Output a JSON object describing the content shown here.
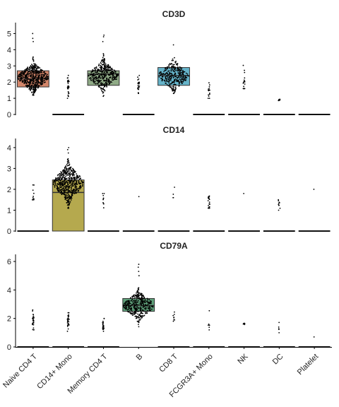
{
  "chart_data": {
    "type": "box-swarm",
    "categories": [
      "Naive CD4 T",
      "CD14+ Mono",
      "Memory CD4 T",
      "B",
      "CD8 T",
      "FCGR3A+ Mono",
      "NK",
      "DC",
      "Platelet"
    ],
    "category_labels": [
      "Naive CD4 T",
      "CD14+ Mono",
      "Memory CD4 T",
      "B",
      "CD8 T",
      "FCGR3A+ Mono",
      "NK",
      "DC",
      "Platelet"
    ],
    "panels": [
      {
        "title": "CD3D",
        "ylim": [
          0,
          5.5
        ],
        "yticks": [
          0,
          1,
          2,
          3,
          4,
          5
        ],
        "boxes": [
          {
            "category": "Naive CD4 T",
            "q1": 1.7,
            "median": 2.2,
            "q3": 2.7,
            "color": "#d4866a"
          },
          {
            "category": "CD14+ Mono",
            "q1": 0,
            "median": 0,
            "q3": 0,
            "color": "#b5a94e"
          },
          {
            "category": "Memory CD4 T",
            "q1": 1.8,
            "median": 2.5,
            "q3": 2.7,
            "color": "#8faa86"
          },
          {
            "category": "B",
            "q1": 0,
            "median": 0,
            "q3": 0,
            "color": "#5fa07a"
          },
          {
            "category": "CD8 T",
            "q1": 1.8,
            "median": 2.4,
            "q3": 2.9,
            "color": "#65b3c9"
          },
          {
            "category": "FCGR3A+ Mono",
            "q1": 0,
            "median": 0,
            "q3": 0,
            "color": "#7b8fcf"
          },
          {
            "category": "NK",
            "q1": 0,
            "median": 0,
            "q3": 0,
            "color": "#a98bd1"
          },
          {
            "category": "DC",
            "q1": 0,
            "median": 0,
            "q3": 0,
            "color": "#d08bc0"
          },
          {
            "category": "Platelet",
            "q1": 0,
            "median": 0,
            "q3": 0,
            "color": "#e08aa0"
          }
        ],
        "swarms": [
          {
            "category": "Naive CD4 T",
            "n": 520,
            "min": 1.2,
            "max": 4.3,
            "center": 2.3,
            "sd": 0.45,
            "outliers": [
              4.7,
              5.0,
              4.5
            ]
          },
          {
            "category": "CD14+ Mono",
            "n": 30,
            "min": 1.0,
            "max": 2.9,
            "center": 1.7,
            "sd": 0.4,
            "outliers": []
          },
          {
            "category": "Memory CD4 T",
            "n": 420,
            "min": 1.1,
            "max": 4.0,
            "center": 2.4,
            "sd": 0.45,
            "outliers": [
              4.5,
              4.8,
              4.9
            ]
          },
          {
            "category": "B",
            "n": 25,
            "min": 1.3,
            "max": 2.6,
            "center": 1.8,
            "sd": 0.35,
            "outliers": []
          },
          {
            "category": "CD8 T",
            "n": 300,
            "min": 1.3,
            "max": 4.0,
            "center": 2.4,
            "sd": 0.45,
            "outliers": [
              4.3
            ]
          },
          {
            "category": "FCGR3A+ Mono",
            "n": 15,
            "min": 1.0,
            "max": 2.0,
            "center": 1.4,
            "sd": 0.3,
            "outliers": []
          },
          {
            "category": "NK",
            "n": 18,
            "min": 1.6,
            "max": 3.6,
            "center": 2.0,
            "sd": 0.6,
            "outliers": []
          },
          {
            "category": "DC",
            "n": 8,
            "min": 0.8,
            "max": 1.0,
            "center": 0.9,
            "sd": 0.05,
            "outliers": []
          },
          {
            "category": "Platelet",
            "n": 0,
            "min": 0,
            "max": 0,
            "center": 0,
            "sd": 0,
            "outliers": []
          }
        ]
      },
      {
        "title": "CD14",
        "ylim": [
          0,
          4.3
        ],
        "yticks": [
          0,
          1,
          2,
          3,
          4
        ],
        "boxes": [
          {
            "category": "Naive CD4 T",
            "q1": 0,
            "median": 0,
            "q3": 0,
            "color": "#d4866a"
          },
          {
            "category": "CD14+ Mono",
            "q1": 0,
            "median": 1.85,
            "q3": 2.45,
            "color": "#b5a94e"
          },
          {
            "category": "Memory CD4 T",
            "q1": 0,
            "median": 0,
            "q3": 0,
            "color": "#8faa86"
          },
          {
            "category": "B",
            "q1": 0,
            "median": 0,
            "q3": 0,
            "color": "#5fa07a"
          },
          {
            "category": "CD8 T",
            "q1": 0,
            "median": 0,
            "q3": 0,
            "color": "#65b3c9"
          },
          {
            "category": "FCGR3A+ Mono",
            "q1": 0,
            "median": 0,
            "q3": 0,
            "color": "#7b8fcf"
          },
          {
            "category": "NK",
            "q1": 0,
            "median": 0,
            "q3": 0,
            "color": "#a98bd1"
          },
          {
            "category": "DC",
            "q1": 0,
            "median": 0,
            "q3": 0,
            "color": "#d08bc0"
          },
          {
            "category": "Platelet",
            "q1": 0,
            "median": 0,
            "q3": 0,
            "color": "#e08aa0"
          }
        ],
        "swarms": [
          {
            "category": "Naive CD4 T",
            "n": 12,
            "min": 1.5,
            "max": 2.5,
            "center": 1.8,
            "sd": 0.3,
            "outliers": []
          },
          {
            "category": "CD14+ Mono",
            "n": 560,
            "min": 1.1,
            "max": 3.8,
            "center": 2.3,
            "sd": 0.45,
            "outliers": [
              3.9,
              4.0
            ]
          },
          {
            "category": "Memory CD4 T",
            "n": 10,
            "min": 1.0,
            "max": 1.8,
            "center": 1.5,
            "sd": 0.25,
            "outliers": []
          },
          {
            "category": "B",
            "n": 1,
            "min": 1.65,
            "max": 1.65,
            "center": 1.65,
            "sd": 0,
            "outliers": []
          },
          {
            "category": "CD8 T",
            "n": 4,
            "min": 1.6,
            "max": 2.1,
            "center": 1.8,
            "sd": 0.2,
            "outliers": []
          },
          {
            "category": "FCGR3A+ Mono",
            "n": 25,
            "min": 1.1,
            "max": 2.1,
            "center": 1.4,
            "sd": 0.3,
            "outliers": []
          },
          {
            "category": "NK",
            "n": 1,
            "min": 1.8,
            "max": 1.8,
            "center": 1.8,
            "sd": 0,
            "outliers": []
          },
          {
            "category": "DC",
            "n": 10,
            "min": 1.0,
            "max": 1.5,
            "center": 1.2,
            "sd": 0.15,
            "outliers": []
          },
          {
            "category": "Platelet",
            "n": 1,
            "min": 2.0,
            "max": 2.0,
            "center": 2.0,
            "sd": 0,
            "outliers": []
          }
        ]
      },
      {
        "title": "CD79A",
        "ylim": [
          0,
          6.3
        ],
        "yticks": [
          0,
          2,
          4,
          6
        ],
        "boxes": [
          {
            "category": "Naive CD4 T",
            "q1": 0,
            "median": 0,
            "q3": 0,
            "color": "#d4866a"
          },
          {
            "category": "CD14+ Mono",
            "q1": 0,
            "median": 0,
            "q3": 0,
            "color": "#b5a94e"
          },
          {
            "category": "Memory CD4 T",
            "q1": 0,
            "median": 0,
            "q3": 0,
            "color": "#8faa86"
          },
          {
            "category": "B",
            "q1": 2.5,
            "median": 2.9,
            "q3": 3.4,
            "color": "#5fa07a"
          },
          {
            "category": "CD8 T",
            "q1": 0,
            "median": 0,
            "q3": 0,
            "color": "#65b3c9"
          },
          {
            "category": "FCGR3A+ Mono",
            "q1": 0,
            "median": 0,
            "q3": 0,
            "color": "#7b8fcf"
          },
          {
            "category": "NK",
            "q1": 0,
            "median": 0,
            "q3": 0,
            "color": "#a98bd1"
          },
          {
            "category": "DC",
            "q1": 0,
            "median": 0,
            "q3": 0,
            "color": "#d08bc0"
          },
          {
            "category": "Platelet",
            "q1": 0,
            "median": 0,
            "q3": 0,
            "color": "#e08aa0"
          }
        ],
        "swarms": [
          {
            "category": "Naive CD4 T",
            "n": 30,
            "min": 1.2,
            "max": 2.6,
            "center": 1.8,
            "sd": 0.35,
            "outliers": []
          },
          {
            "category": "CD14+ Mono",
            "n": 30,
            "min": 1.1,
            "max": 2.4,
            "center": 1.7,
            "sd": 0.35,
            "outliers": []
          },
          {
            "category": "Memory CD4 T",
            "n": 25,
            "min": 1.1,
            "max": 2.0,
            "center": 1.5,
            "sd": 0.25,
            "outliers": []
          },
          {
            "category": "B",
            "n": 380,
            "min": 1.4,
            "max": 4.6,
            "center": 2.9,
            "sd": 0.5,
            "outliers": [
              5.0,
              5.3,
              5.6,
              5.8
            ]
          },
          {
            "category": "CD8 T",
            "n": 8,
            "min": 1.6,
            "max": 2.8,
            "center": 2.0,
            "sd": 0.35,
            "outliers": []
          },
          {
            "category": "FCGR3A+ Mono",
            "n": 6,
            "min": 1.1,
            "max": 2.6,
            "center": 1.4,
            "sd": 0.4,
            "outliers": []
          },
          {
            "category": "NK",
            "n": 6,
            "min": 1.5,
            "max": 1.8,
            "center": 1.65,
            "sd": 0.1,
            "outliers": []
          },
          {
            "category": "DC",
            "n": 5,
            "min": 1.0,
            "max": 2.7,
            "center": 1.2,
            "sd": 0.4,
            "outliers": []
          },
          {
            "category": "Platelet",
            "n": 1,
            "min": 0.7,
            "max": 0.7,
            "center": 0.7,
            "sd": 0,
            "outliers": []
          }
        ]
      }
    ]
  }
}
